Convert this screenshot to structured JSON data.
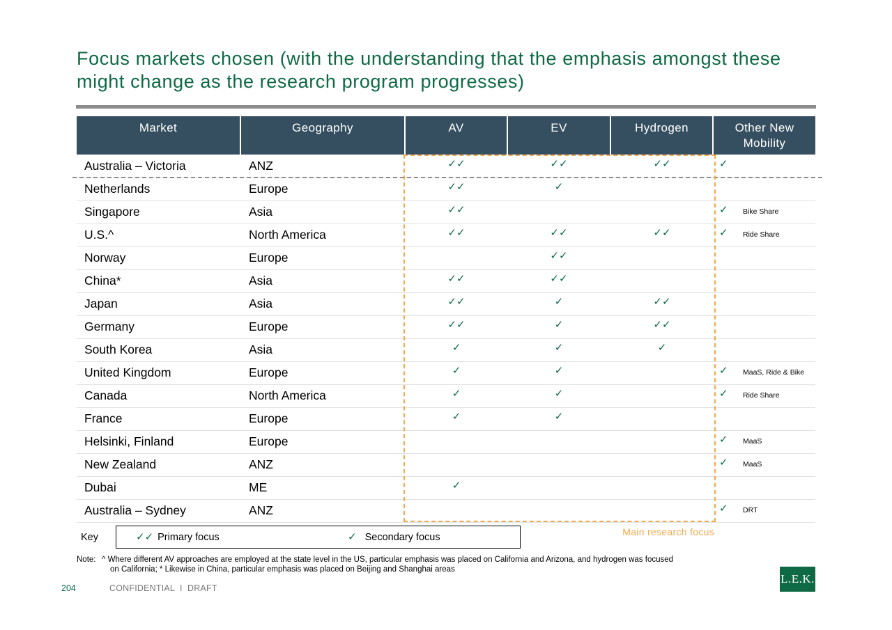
{
  "title": "Focus markets chosen (with the understanding that the emphasis amongst these might change as the research program progresses)",
  "table": {
    "headers": [
      "Market",
      "Geography",
      "AV",
      "EV",
      "Hydrogen",
      "Other New Mobility"
    ],
    "rows": [
      {
        "market": "Australia – Victoria",
        "geography": "ANZ",
        "av": "✓✓",
        "ev": "✓✓",
        "hydrogen": "✓✓",
        "onm": "✓",
        "onm_note": ""
      },
      {
        "market": "Netherlands",
        "geography": "Europe",
        "av": "✓✓",
        "ev": "✓",
        "hydrogen": "",
        "onm": "",
        "onm_note": ""
      },
      {
        "market": "Singapore",
        "geography": "Asia",
        "av": "✓✓",
        "ev": "",
        "hydrogen": "",
        "onm": "✓",
        "onm_note": "Bike Share"
      },
      {
        "market": "U.S.^",
        "geography": "North America",
        "av": "✓✓",
        "ev": "✓✓",
        "hydrogen": "✓✓",
        "onm": "✓",
        "onm_note": "Ride Share"
      },
      {
        "market": "Norway",
        "geography": "Europe",
        "av": "",
        "ev": "✓✓",
        "hydrogen": "",
        "onm": "",
        "onm_note": ""
      },
      {
        "market": "China*",
        "geography": "Asia",
        "av": "✓✓",
        "ev": "✓✓",
        "hydrogen": "",
        "onm": "",
        "onm_note": ""
      },
      {
        "market": "Japan",
        "geography": "Asia",
        "av": "✓✓",
        "ev": "✓",
        "hydrogen": "✓✓",
        "onm": "",
        "onm_note": ""
      },
      {
        "market": "Germany",
        "geography": "Europe",
        "av": "✓✓",
        "ev": "✓",
        "hydrogen": "✓✓",
        "onm": "",
        "onm_note": ""
      },
      {
        "market": "South Korea",
        "geography": "Asia",
        "av": "✓",
        "ev": "✓",
        "hydrogen": "✓",
        "onm": "",
        "onm_note": ""
      },
      {
        "market": "United Kingdom",
        "geography": "Europe",
        "av": "✓",
        "ev": "✓",
        "hydrogen": "",
        "onm": "✓",
        "onm_note": "MaaS, Ride & Bike"
      },
      {
        "market": "Canada",
        "geography": "North America",
        "av": "✓",
        "ev": "✓",
        "hydrogen": "",
        "onm": "✓",
        "onm_note": "Ride Share"
      },
      {
        "market": "France",
        "geography": "Europe",
        "av": "✓",
        "ev": "✓",
        "hydrogen": "",
        "onm": "",
        "onm_note": ""
      },
      {
        "market": "Helsinki, Finland",
        "geography": "Europe",
        "av": "",
        "ev": "",
        "hydrogen": "",
        "onm": "✓",
        "onm_note": "MaaS"
      },
      {
        "market": "New Zealand",
        "geography": "ANZ",
        "av": "",
        "ev": "",
        "hydrogen": "",
        "onm": "✓",
        "onm_note": "MaaS"
      },
      {
        "market": "Dubai",
        "geography": "ME",
        "av": "✓",
        "ev": "",
        "hydrogen": "",
        "onm": "",
        "onm_note": ""
      },
      {
        "market": "Australia – Sydney",
        "geography": "ANZ",
        "av": "",
        "ev": "",
        "hydrogen": "",
        "onm": "✓",
        "onm_note": "DRT"
      }
    ]
  },
  "focus_label": "Main research focus",
  "key": {
    "label": "Key",
    "primary_symbol": "✓✓",
    "primary_label": "Primary focus",
    "secondary_symbol": "✓",
    "secondary_label": "Secondary focus"
  },
  "note": {
    "prefix": "Note:",
    "line1": "^ Where different AV approaches are employed at the state level in the US, particular emphasis was placed on California and Arizona, and hydrogen was focused",
    "line2": "on California; * Likewise in China, particular emphasis was placed on Beijing and Shanghai areas"
  },
  "footer": {
    "page_number": "204",
    "confidentiality": "CONFIDENTIAL  I  DRAFT",
    "logo_text": "L.E.K."
  },
  "colors": {
    "title_green": "#0e6a45",
    "header_bg": "#354f60",
    "focus_orange": "#f2a84c",
    "rule_gray": "#8c8c8c"
  }
}
